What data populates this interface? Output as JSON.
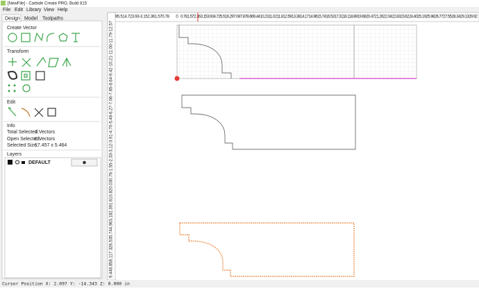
{
  "window": {
    "title": "[NewFile] - Carbide Create PRO, Build 815"
  },
  "menu": [
    "File",
    "Edit",
    "Library",
    "View",
    "Help"
  ],
  "tabs": [
    "Design",
    "Model",
    "Toolpaths"
  ],
  "sections": {
    "create_vector": "Create Vector",
    "transform": "Transform",
    "edit": "Edit",
    "info": "Info",
    "layers": "Layers"
  },
  "info": [
    {
      "label": "Total Selected:",
      "value": "1 Vectors"
    },
    {
      "label": "Open Selected:",
      "value": "0 Vectors"
    },
    {
      "label": "Selected Size:",
      "value": "17.457 x 5.464"
    }
  ],
  "layers": [
    {
      "name": "DEFAULT"
    }
  ],
  "rulers": {
    "top_left": "95.514.723.93-3.152.361.570.78",
    "top_zero": "0",
    "top_right": "0.781.572.363.153.934.725.516.297.087.878.669.4410.2311.0211.812.5913.3814.1714.9615.7416.5317.3118.118.8919.6820.4721.2622.0422.8323.6224.4025.1925.9826.7727.5528.3429.1329.92",
    "left": "9.448.858.117.326.535.744.963.182.391.610.820.030.76-1.55-2.33-3.12-3.91-4.70-5.48-6.27-7.06-7.85-8.64-9.42-10.21-11.00-11.79-12.57"
  },
  "status": "Cursor Position X: 2.097 Y: -14.343 Z: 0.000 in"
}
